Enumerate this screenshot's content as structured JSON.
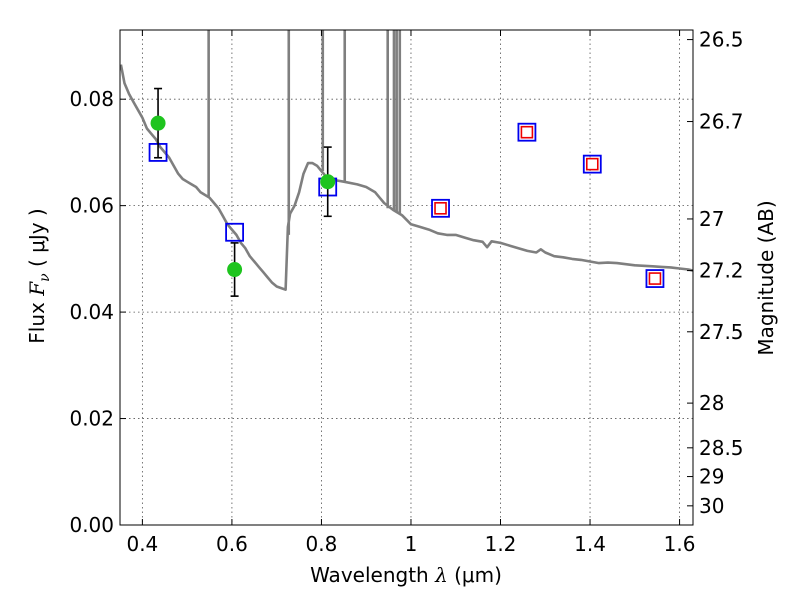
{
  "chart_data": {
    "type": "scatter",
    "xlabel": {
      "pre": "Wavelength  ",
      "sym": "λ",
      "units": " (μm)"
    },
    "ylabel": {
      "pre": "Flux  ",
      "sym": "F",
      "sub": "ν",
      "units": "  ( μJy )"
    },
    "y2label": "Magnitude (AB)",
    "xlim": [
      0.35,
      1.63
    ],
    "ylim": [
      0.0,
      0.093
    ],
    "grid": true,
    "x_ticks": [
      0.4,
      0.6,
      0.8,
      1.0,
      1.2,
      1.4,
      1.6
    ],
    "x_tick_labels": [
      "0.4",
      "0.6",
      "0.8",
      "1",
      "1.2",
      "1.4",
      "1.6"
    ],
    "y_ticks": [
      0.0,
      0.02,
      0.04,
      0.06,
      0.08
    ],
    "y_tick_labels": [
      "0.00",
      "0.02",
      "0.04",
      "0.06",
      "0.08"
    ],
    "y2_ticks": [
      {
        "label": "26.5",
        "flux": 0.0912
      },
      {
        "label": "26.7",
        "flux": 0.0758
      },
      {
        "label": "27",
        "flux": 0.0575
      },
      {
        "label": "27.2",
        "flux": 0.0478
      },
      {
        "label": "27.5",
        "flux": 0.0363
      },
      {
        "label": "28",
        "flux": 0.0229
      },
      {
        "label": "28.5",
        "flux": 0.0145
      },
      {
        "label": "29",
        "flux": 0.0091
      },
      {
        "label": "30",
        "flux": 0.0036
      }
    ],
    "model_spectrum": [
      [
        0.352,
        0.0865
      ],
      [
        0.36,
        0.083
      ],
      [
        0.37,
        0.081
      ],
      [
        0.38,
        0.0795
      ],
      [
        0.39,
        0.078
      ],
      [
        0.4,
        0.0765
      ],
      [
        0.41,
        0.0745
      ],
      [
        0.42,
        0.0735
      ],
      [
        0.43,
        0.0725
      ],
      [
        0.44,
        0.071
      ],
      [
        0.45,
        0.07
      ],
      [
        0.46,
        0.069
      ],
      [
        0.47,
        0.0675
      ],
      [
        0.48,
        0.066
      ],
      [
        0.49,
        0.065
      ],
      [
        0.5,
        0.0645
      ],
      [
        0.51,
        0.064
      ],
      [
        0.52,
        0.0635
      ],
      [
        0.53,
        0.0625
      ],
      [
        0.54,
        0.062
      ],
      [
        0.55,
        0.0615
      ],
      [
        0.56,
        0.0605
      ],
      [
        0.57,
        0.0595
      ],
      [
        0.58,
        0.058
      ],
      [
        0.59,
        0.0565
      ],
      [
        0.6,
        0.0555
      ],
      [
        0.61,
        0.0545
      ],
      [
        0.62,
        0.053
      ],
      [
        0.63,
        0.052
      ],
      [
        0.64,
        0.0505
      ],
      [
        0.65,
        0.0495
      ],
      [
        0.66,
        0.0485
      ],
      [
        0.67,
        0.0475
      ],
      [
        0.68,
        0.0465
      ],
      [
        0.69,
        0.0455
      ],
      [
        0.7,
        0.0448
      ],
      [
        0.71,
        0.0445
      ],
      [
        0.72,
        0.0442
      ],
      [
        0.725,
        0.056
      ],
      [
        0.73,
        0.0585
      ],
      [
        0.74,
        0.06
      ],
      [
        0.75,
        0.0625
      ],
      [
        0.76,
        0.066
      ],
      [
        0.77,
        0.068
      ],
      [
        0.78,
        0.068
      ],
      [
        0.79,
        0.0675
      ],
      [
        0.8,
        0.0665
      ],
      [
        0.81,
        0.0655
      ],
      [
        0.82,
        0.065
      ],
      [
        0.83,
        0.0648
      ],
      [
        0.85,
        0.0645
      ],
      [
        0.88,
        0.064
      ],
      [
        0.9,
        0.0635
      ],
      [
        0.92,
        0.0625
      ],
      [
        0.94,
        0.0605
      ],
      [
        0.96,
        0.0592
      ],
      [
        0.98,
        0.0582
      ],
      [
        1.0,
        0.0565
      ],
      [
        1.02,
        0.056
      ],
      [
        1.04,
        0.0555
      ],
      [
        1.06,
        0.0548
      ],
      [
        1.08,
        0.0545
      ],
      [
        1.1,
        0.0545
      ],
      [
        1.12,
        0.054
      ],
      [
        1.14,
        0.0535
      ],
      [
        1.16,
        0.0532
      ],
      [
        1.17,
        0.0522
      ],
      [
        1.18,
        0.0533
      ],
      [
        1.2,
        0.053
      ],
      [
        1.22,
        0.0525
      ],
      [
        1.24,
        0.052
      ],
      [
        1.26,
        0.0515
      ],
      [
        1.28,
        0.0512
      ],
      [
        1.29,
        0.0518
      ],
      [
        1.3,
        0.0512
      ],
      [
        1.32,
        0.0505
      ],
      [
        1.34,
        0.0503
      ],
      [
        1.36,
        0.05
      ],
      [
        1.38,
        0.0498
      ],
      [
        1.4,
        0.0495
      ],
      [
        1.42,
        0.0492
      ],
      [
        1.44,
        0.0493
      ],
      [
        1.46,
        0.0492
      ],
      [
        1.48,
        0.049
      ],
      [
        1.5,
        0.0488
      ],
      [
        1.52,
        0.0487
      ],
      [
        1.54,
        0.0486
      ],
      [
        1.56,
        0.0485
      ],
      [
        1.58,
        0.0484
      ],
      [
        1.6,
        0.0482
      ],
      [
        1.62,
        0.048
      ],
      [
        1.63,
        0.0478
      ]
    ],
    "spectral_spikes": [
      {
        "x": 0.548,
        "base": 0.0615,
        "top": 0.093
      },
      {
        "x": 0.727,
        "base": 0.0545,
        "top": 0.093
      },
      {
        "x": 0.803,
        "base": 0.0665,
        "top": 0.093
      },
      {
        "x": 0.852,
        "base": 0.0644,
        "top": 0.093
      },
      {
        "x": 0.948,
        "base": 0.0595,
        "top": 0.093
      },
      {
        "x": 0.962,
        "base": 0.059,
        "top": 0.093
      },
      {
        "x": 0.968,
        "base": 0.0588,
        "top": 0.093
      },
      {
        "x": 0.975,
        "base": 0.0585,
        "top": 0.093
      }
    ],
    "measured_flux": [
      {
        "x": 0.435,
        "y": 0.0755,
        "err": 0.0065
      },
      {
        "x": 0.606,
        "y": 0.048,
        "err": 0.005
      },
      {
        "x": 0.814,
        "y": 0.0645,
        "err": 0.0065
      }
    ],
    "model_bandpass_flux": [
      {
        "x": 0.435,
        "y": 0.07
      },
      {
        "x": 0.606,
        "y": 0.055
      },
      {
        "x": 0.814,
        "y": 0.0635
      },
      {
        "x": 1.066,
        "y": 0.0595
      },
      {
        "x": 1.259,
        "y": 0.0738
      },
      {
        "x": 1.405,
        "y": 0.0678
      },
      {
        "x": 1.545,
        "y": 0.0463
      }
    ],
    "red_measured_flux": [
      {
        "x": 1.066,
        "y": 0.0595
      },
      {
        "x": 1.259,
        "y": 0.0738
      },
      {
        "x": 1.405,
        "y": 0.0678
      },
      {
        "x": 1.545,
        "y": 0.0463
      }
    ],
    "colors": {
      "model_spectrum": "#7f7f7f",
      "measured_flux": "#1ec41e",
      "model_bandpass_flux": "#0000ee",
      "red_measured_flux": "#ee0000",
      "error_bar": "#000000",
      "grid": "#555555"
    }
  }
}
